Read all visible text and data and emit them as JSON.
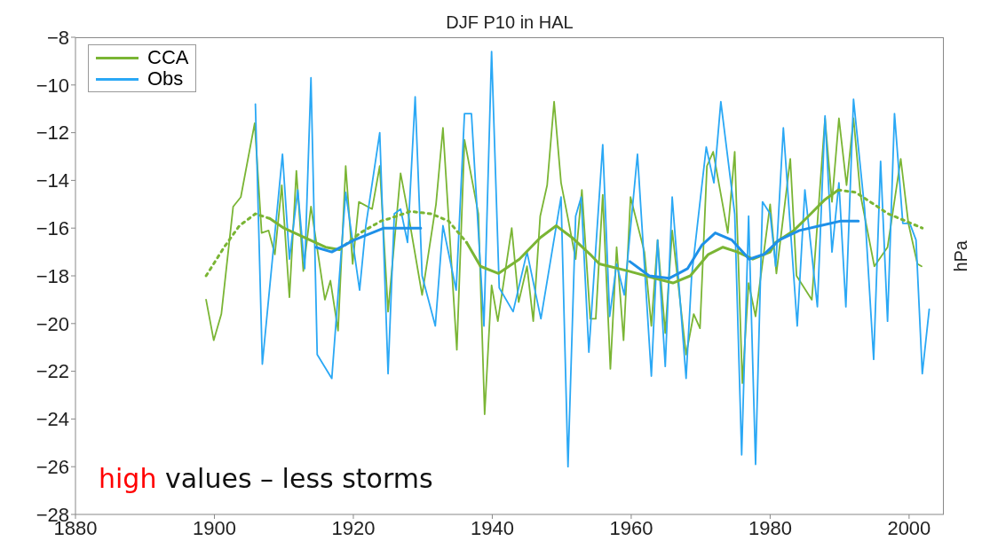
{
  "chart_data": {
    "type": "line",
    "title": "DJF  P10 in HAL",
    "ylabel": "hPa",
    "xlim": [
      1880,
      2005
    ],
    "xticks": [
      1880,
      1900,
      1920,
      1940,
      1960,
      1980,
      2000
    ],
    "ylim": [
      -28,
      -8
    ],
    "yticks": [
      -28,
      -26,
      -24,
      -22,
      -20,
      -18,
      -16,
      -14,
      -12,
      -10,
      -8
    ],
    "legend": "top left",
    "annotations": [
      "high values – less storms"
    ],
    "series": [
      {
        "name": "CCA",
        "color": "#7ab534",
        "x": [
          1898.8,
          1899.9,
          1901,
          1902.7,
          1903.8,
          1905.8,
          1906.8,
          1907.8,
          1908.7,
          1909.7,
          1910.8,
          1911.8,
          1912.8,
          1913.9,
          1915.9,
          1916.7,
          1917.8,
          1918.9,
          1919.9,
          1920.8,
          1922.7,
          1923.8,
          1925,
          1926.8,
          1927.9,
          1929.9,
          1931.9,
          1932.9,
          1934.9,
          1936,
          1938,
          1938.9,
          1939.9,
          1940.8,
          1942.8,
          1943.8,
          1945,
          1945.9,
          1946.9,
          1947.9,
          1948.9,
          1949.9,
          1950.9,
          1952,
          1952.9,
          1954.1,
          1954.9,
          1955.9,
          1957,
          1957.9,
          1958.9,
          1959.9,
          1961.9,
          1962.9,
          1963.8,
          1964.9,
          1965.9,
          1967.9,
          1969,
          1969.9,
          1970.9,
          1971.8,
          1973.9,
          1974.9,
          1976,
          1976.9,
          1977.9,
          1980,
          1980.9,
          1982.9,
          1983.8,
          1986,
          1987.9,
          1988.9,
          1989.9,
          1991,
          1992,
          1993,
          1995,
          1996.9,
          1998.8,
          1999.9,
          2001.2,
          2001.8
        ],
        "values": [
          -19.0,
          -20.7,
          -19.6,
          -15.1,
          -14.7,
          -11.6,
          -16.2,
          -16.1,
          -17.1,
          -14.2,
          -18.9,
          -13.6,
          -17.8,
          -15.1,
          -19.0,
          -18.2,
          -20.3,
          -13.4,
          -17.5,
          -14.9,
          -15.2,
          -13.4,
          -19.5,
          -13.7,
          -15.4,
          -18.8,
          -15.0,
          -11.8,
          -21.1,
          -12.3,
          -15.4,
          -23.8,
          -18.4,
          -19.9,
          -16.0,
          -19.1,
          -17.6,
          -19.9,
          -15.5,
          -14.2,
          -10.7,
          -14.1,
          -15.6,
          -17.3,
          -14.4,
          -19.8,
          -19.8,
          -14.6,
          -21.9,
          -16.8,
          -20.7,
          -14.7,
          -17.0,
          -20.1,
          -16.5,
          -20.4,
          -16.1,
          -21.3,
          -19.6,
          -20.2,
          -13.4,
          -12.8,
          -16.2,
          -12.8,
          -22.5,
          -18.3,
          -19.7,
          -15.0,
          -17.9,
          -13.1,
          -18.0,
          -19.0,
          -11.4,
          -14.9,
          -11.4,
          -14.2,
          -11.4,
          -14.6,
          -17.6,
          -16.8,
          -13.1,
          -15.8,
          -17.5,
          -17.6
        ]
      },
      {
        "name": "Obs",
        "color": "#2aa8f5",
        "x": [
          1905.9,
          1906.9,
          1909.8,
          1910.8,
          1912,
          1913,
          1913.9,
          1914.8,
          1916.9,
          1918.9,
          1920.9,
          1921.8,
          1923.8,
          1925,
          1925.9,
          1926.8,
          1927.8,
          1928.9,
          1929.9,
          1931.8,
          1932.9,
          1934.8,
          1936,
          1937,
          1938.8,
          1939.9,
          1941,
          1943,
          1945,
          1947,
          1949.9,
          1950.9,
          1952,
          1952.8,
          1953.9,
          1955.9,
          1956.9,
          1957.9,
          1959,
          1960.9,
          1962.9,
          1963.8,
          1964.9,
          1965.9,
          1967.9,
          1968.7,
          1970.8,
          1971.9,
          1972.9,
          1974.9,
          1975.9,
          1976.9,
          1977.9,
          1978.9,
          1980,
          1980.8,
          1981.9,
          1983.9,
          1985,
          1986.8,
          1987.9,
          1988.9,
          1989.9,
          1990.9,
          1992,
          1993.6,
          1994.9,
          1995.9,
          1996.9,
          1997.9,
          1999.1,
          2000.1,
          2001,
          2001.9,
          2002.9
        ],
        "values": [
          -10.8,
          -21.7,
          -12.9,
          -17.3,
          -14.4,
          -17.7,
          -9.7,
          -21.3,
          -22.3,
          -14.5,
          -18.6,
          -15.9,
          -12.0,
          -22.1,
          -15.4,
          -15.2,
          -16.6,
          -10.5,
          -18.0,
          -20.1,
          -15.9,
          -18.6,
          -11.2,
          -11.2,
          -20.1,
          -8.6,
          -18.5,
          -19.5,
          -17.0,
          -19.8,
          -14.7,
          -26.0,
          -15.5,
          -14.7,
          -21.2,
          -12.5,
          -19.7,
          -17.5,
          -18.8,
          -12.9,
          -22.2,
          -16.5,
          -21.8,
          -14.7,
          -22.3,
          -18.0,
          -12.6,
          -14.1,
          -10.7,
          -15.4,
          -25.5,
          -15.5,
          -25.9,
          -14.9,
          -15.4,
          -17.6,
          -11.8,
          -20.1,
          -14.4,
          -19.3,
          -11.3,
          -17.0,
          -14.1,
          -19.3,
          -10.6,
          -15.2,
          -21.5,
          -13.2,
          -19.9,
          -11.2,
          -15.8,
          -15.8,
          -16.5,
          -22.1,
          -19.4
        ]
      },
      {
        "color": "#7ab534",
        "line_style": "dotted",
        "x": [
          1898.8,
          1901.4,
          1903.6,
          1905.9,
          1908
        ],
        "values": [
          -18.0,
          -16.8,
          -15.9,
          -15.4,
          -15.6
        ]
      },
      {
        "color": "#7ab534",
        "line_style": "solid",
        "x": [
          1908,
          1910,
          1913,
          1916,
          1918
        ],
        "values": [
          -15.6,
          -16.0,
          -16.4,
          -16.8,
          -16.9
        ]
      },
      {
        "color": "#7ab534",
        "line_style": "dotted",
        "x": [
          1918,
          1921,
          1924,
          1925.2,
          1928.2,
          1931.2,
          1933.7,
          1936.3
        ],
        "values": [
          -16.9,
          -16.2,
          -15.7,
          -15.6,
          -15.3,
          -15.4,
          -15.7,
          -16.6
        ]
      },
      {
        "color": "#7ab534",
        "line_style": "solid",
        "x": [
          1936.3,
          1938.3,
          1940.9,
          1943.9,
          1946.9,
          1949.2,
          1951.5,
          1954.1,
          1955.4,
          1959.6,
          1963.4,
          1966,
          1968.5,
          1971.1,
          1973.2,
          1975.3,
          1977.5,
          1980,
          1980.8,
          1983.4,
          1985.5,
          1987.9,
          1989.8
        ],
        "values": [
          -16.6,
          -17.6,
          -17.9,
          -17.3,
          -16.4,
          -15.9,
          -16.4,
          -17.1,
          -17.5,
          -17.8,
          -18.1,
          -18.3,
          -18.0,
          -17.1,
          -16.8,
          -17.0,
          -17.3,
          -17.0,
          -16.6,
          -16.1,
          -15.5,
          -14.8,
          -14.4
        ]
      },
      {
        "color": "#7ab534",
        "line_style": "dotted",
        "x": [
          1989.8,
          1992.3,
          1994.4,
          1997,
          1999.5,
          2001.9
        ],
        "values": [
          -14.4,
          -14.5,
          -14.9,
          -15.4,
          -15.7,
          -16.0
        ]
      },
      {
        "color": "#1e90e8",
        "line_style": "solid",
        "x": [
          1914.6,
          1916.9,
          1920.1,
          1924.4,
          1926.5,
          1929.7
        ],
        "values": [
          -16.8,
          -17.0,
          -16.5,
          -16.0,
          -16.0,
          -16.0
        ]
      },
      {
        "color": "#1e90e8",
        "line_style": "solid",
        "x": [
          1959.8,
          1962.6,
          1965.5,
          1968.1,
          1970.2,
          1972.1,
          1974.5,
          1977,
          1979.1,
          1981.3,
          1984.2,
          1987.2,
          1990.2,
          1992.7
        ],
        "values": [
          -17.4,
          -18.0,
          -18.1,
          -17.7,
          -16.7,
          -16.2,
          -16.5,
          -17.3,
          -17.1,
          -16.5,
          -16.1,
          -15.9,
          -15.7,
          -15.7
        ]
      }
    ]
  }
}
